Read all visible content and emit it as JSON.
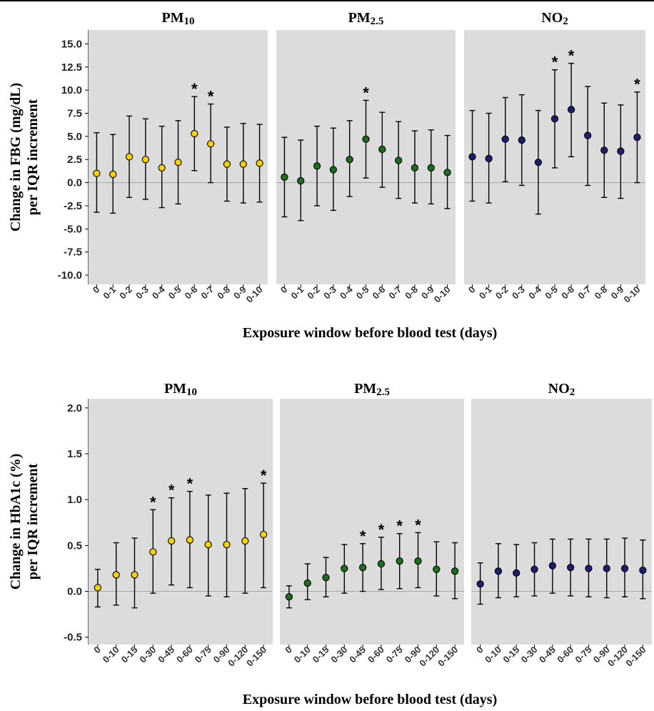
{
  "colors": {
    "panel_bg": "#dcdcdc",
    "zero_line": "#a6a6a6",
    "pm10": "#f5d000",
    "pm25": "#1c6e1c",
    "no2": "#1b1f6e",
    "ink": "#000000"
  },
  "chart_data": [
    {
      "type": "scatter",
      "description_kind": "point estimate with error bars, faceted",
      "ylabel_line1": "Change in FBG (mg/dL)",
      "ylabel_line2": "per IQR increment",
      "xlabel": "Exposure window before blood test (days)",
      "ylim": [
        -11,
        16.5
      ],
      "yticks": [
        "15.0",
        "12.5",
        "10.0",
        "7.5",
        "5.0",
        "2.5",
        "0.0",
        "-2.5",
        "-5.0",
        "-7.5",
        "-10.0"
      ],
      "grid": false,
      "panels": [
        {
          "title_main": "PM",
          "title_sub": "10",
          "color_key": "pm10",
          "categories": [
            "0",
            "0-1",
            "0-2",
            "0-3",
            "0-4",
            "0-5",
            "0-6",
            "0-7",
            "0-8",
            "0-9",
            "0-10"
          ],
          "estimate": [
            1.0,
            0.9,
            2.8,
            2.5,
            1.6,
            2.2,
            5.3,
            4.2,
            2.0,
            2.0,
            2.1
          ],
          "lower": [
            -3.2,
            -3.3,
            -1.6,
            -1.8,
            -2.7,
            -2.3,
            1.3,
            0.0,
            -2.0,
            -2.2,
            -2.1
          ],
          "upper": [
            5.4,
            5.2,
            7.2,
            6.9,
            6.1,
            6.7,
            9.3,
            8.5,
            6.0,
            6.4,
            6.3
          ],
          "significance_marker": "*",
          "significant": [
            false,
            false,
            false,
            false,
            false,
            false,
            true,
            true,
            false,
            false,
            false
          ]
        },
        {
          "title_main": "PM",
          "title_sub": "2.5",
          "color_key": "pm25",
          "categories": [
            "0",
            "0-1",
            "0-2",
            "0-3",
            "0-4",
            "0-5",
            "0-6",
            "0-7",
            "0-8",
            "0-9",
            "0-10"
          ],
          "estimate": [
            0.6,
            0.2,
            1.8,
            1.4,
            2.5,
            4.7,
            3.6,
            2.4,
            1.6,
            1.6,
            1.1
          ],
          "lower": [
            -3.7,
            -4.1,
            -2.5,
            -3.0,
            -1.5,
            0.5,
            -0.5,
            -1.7,
            -2.2,
            -2.3,
            -2.8
          ],
          "upper": [
            4.9,
            4.6,
            6.1,
            5.9,
            6.7,
            8.9,
            7.6,
            6.6,
            5.6,
            5.7,
            5.1
          ],
          "significance_marker": "*",
          "significant": [
            false,
            false,
            false,
            false,
            false,
            true,
            false,
            false,
            false,
            false,
            false
          ]
        },
        {
          "title_main": "NO",
          "title_sub": "2",
          "color_key": "no2",
          "categories": [
            "0",
            "0-1",
            "0-2",
            "0-3",
            "0-4",
            "0-5",
            "0-6",
            "0-7",
            "0-8",
            "0-9",
            "0-10"
          ],
          "estimate": [
            2.8,
            2.6,
            4.7,
            4.6,
            2.2,
            6.9,
            7.9,
            5.1,
            3.5,
            3.4,
            4.9
          ],
          "lower": [
            -2.0,
            -2.2,
            0.1,
            -0.3,
            -3.4,
            1.6,
            2.8,
            -0.3,
            -1.6,
            -1.7,
            0.0
          ],
          "upper": [
            7.8,
            7.5,
            9.2,
            9.5,
            7.8,
            12.2,
            12.9,
            10.4,
            8.6,
            8.4,
            9.8
          ],
          "significance_marker": "*",
          "significant": [
            false,
            false,
            false,
            false,
            false,
            true,
            true,
            false,
            false,
            false,
            true
          ]
        }
      ]
    },
    {
      "type": "scatter",
      "description_kind": "point estimate with error bars, faceted",
      "ylabel_line1": "Change in HbA1c (%)",
      "ylabel_line2": "per IQR increment",
      "xlabel": "Exposure window before blood test (days)",
      "ylim": [
        -0.58,
        2.1
      ],
      "yticks": [
        "2.0",
        "1.5",
        "1.0",
        "0.5",
        "0.0",
        "-0.5"
      ],
      "grid": false,
      "panels": [
        {
          "title_main": "PM",
          "title_sub": "10",
          "color_key": "pm10",
          "categories": [
            "0",
            "0-10",
            "0-15",
            "0-30",
            "0-45",
            "0-60",
            "0-75",
            "0-90",
            "0-120",
            "0-150"
          ],
          "estimate": [
            0.04,
            0.18,
            0.18,
            0.43,
            0.55,
            0.56,
            0.51,
            0.51,
            0.55,
            0.62
          ],
          "lower": [
            -0.17,
            -0.15,
            -0.18,
            -0.02,
            0.07,
            0.04,
            -0.05,
            -0.06,
            -0.02,
            0.04
          ],
          "upper": [
            0.24,
            0.53,
            0.58,
            0.89,
            1.02,
            1.09,
            1.05,
            1.07,
            1.12,
            1.18
          ],
          "significance_marker": "*",
          "significant": [
            false,
            false,
            false,
            true,
            true,
            true,
            false,
            false,
            false,
            true
          ]
        },
        {
          "title_main": "PM",
          "title_sub": "2.5",
          "color_key": "pm25",
          "categories": [
            "0",
            "0-10",
            "0-15",
            "0-30",
            "0-45",
            "0-60",
            "0-75",
            "0-90",
            "0-120",
            "0-150"
          ],
          "estimate": [
            -0.06,
            0.09,
            0.15,
            0.25,
            0.26,
            0.3,
            0.33,
            0.33,
            0.24,
            0.22
          ],
          "lower": [
            -0.18,
            -0.09,
            -0.06,
            -0.02,
            0.0,
            0.02,
            0.03,
            0.04,
            -0.05,
            -0.08
          ],
          "upper": [
            0.06,
            0.3,
            0.37,
            0.51,
            0.52,
            0.59,
            0.63,
            0.64,
            0.54,
            0.53
          ],
          "significance_marker": "*",
          "significant": [
            false,
            false,
            false,
            false,
            true,
            true,
            true,
            true,
            false,
            false
          ]
        },
        {
          "title_main": "NO",
          "title_sub": "2",
          "color_key": "no2",
          "categories": [
            "0",
            "0-10",
            "0-15",
            "0-30",
            "0-45",
            "0-60",
            "0-75",
            "0-90",
            "0-120",
            "0-150"
          ],
          "estimate": [
            0.08,
            0.22,
            0.2,
            0.24,
            0.28,
            0.26,
            0.25,
            0.25,
            0.25,
            0.23
          ],
          "lower": [
            -0.14,
            -0.07,
            -0.06,
            -0.05,
            -0.02,
            -0.05,
            -0.06,
            -0.07,
            -0.06,
            -0.08
          ],
          "upper": [
            0.31,
            0.52,
            0.51,
            0.53,
            0.57,
            0.57,
            0.57,
            0.57,
            0.58,
            0.56
          ],
          "significance_marker": "*",
          "significant": [
            false,
            false,
            false,
            false,
            false,
            false,
            false,
            false,
            false,
            false
          ]
        }
      ]
    }
  ]
}
